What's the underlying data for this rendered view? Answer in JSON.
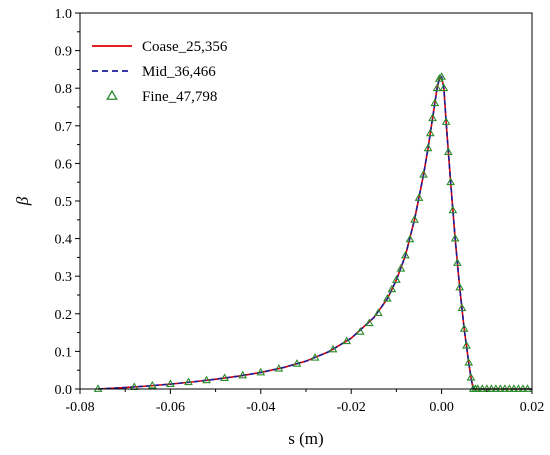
{
  "chart_data": {
    "type": "line",
    "title": "",
    "xlabel": "s (m)",
    "ylabel": "β",
    "xlim": [
      -0.08,
      0.02
    ],
    "ylim": [
      0.0,
      1.0
    ],
    "x_ticks": [
      -0.08,
      -0.06,
      -0.04,
      -0.02,
      0.0,
      0.02
    ],
    "y_ticks": [
      0.0,
      0.1,
      0.2,
      0.3,
      0.4,
      0.5,
      0.6,
      0.7,
      0.8,
      0.9,
      1.0
    ],
    "x_tick_labels": [
      "-0.08",
      "-0.06",
      "-0.04",
      "-0.02",
      "0.00",
      "0.02"
    ],
    "y_tick_labels": [
      "0.0",
      "0.1",
      "0.2",
      "0.3",
      "0.4",
      "0.5",
      "0.6",
      "0.7",
      "0.8",
      "0.9",
      "1.0"
    ],
    "grid": false,
    "legend_position": "top-left",
    "series": [
      {
        "name": "Coase_25,356",
        "style": "solid-line",
        "color": "#e00000",
        "points": [
          [
            -0.076,
            0.0
          ],
          [
            -0.07,
            0.004
          ],
          [
            -0.065,
            0.008
          ],
          [
            -0.06,
            0.013
          ],
          [
            -0.055,
            0.019
          ],
          [
            -0.05,
            0.026
          ],
          [
            -0.045,
            0.034
          ],
          [
            -0.04,
            0.044
          ],
          [
            -0.035,
            0.057
          ],
          [
            -0.03,
            0.074
          ],
          [
            -0.025,
            0.099
          ],
          [
            -0.02,
            0.135
          ],
          [
            -0.015,
            0.19
          ],
          [
            -0.012,
            0.24
          ],
          [
            -0.01,
            0.29
          ],
          [
            -0.008,
            0.355
          ],
          [
            -0.006,
            0.45
          ],
          [
            -0.004,
            0.57
          ],
          [
            -0.003,
            0.64
          ],
          [
            -0.002,
            0.72
          ],
          [
            -0.0015,
            0.76
          ],
          [
            -0.001,
            0.8
          ],
          [
            -0.0005,
            0.825
          ],
          [
            0.0,
            0.83
          ],
          [
            0.0005,
            0.8
          ],
          [
            0.001,
            0.71
          ],
          [
            0.002,
            0.55
          ],
          [
            0.003,
            0.4
          ],
          [
            0.004,
            0.27
          ],
          [
            0.005,
            0.16
          ],
          [
            0.006,
            0.07
          ],
          [
            0.0065,
            0.03
          ],
          [
            0.007,
            0.0
          ],
          [
            0.02,
            0.0
          ]
        ]
      },
      {
        "name": "Mid_36,466",
        "style": "dashed-line",
        "color": "#1c1c9a",
        "points": [
          [
            -0.076,
            0.0
          ],
          [
            -0.07,
            0.004
          ],
          [
            -0.065,
            0.008
          ],
          [
            -0.06,
            0.013
          ],
          [
            -0.055,
            0.019
          ],
          [
            -0.05,
            0.026
          ],
          [
            -0.045,
            0.034
          ],
          [
            -0.04,
            0.044
          ],
          [
            -0.035,
            0.057
          ],
          [
            -0.03,
            0.074
          ],
          [
            -0.025,
            0.099
          ],
          [
            -0.02,
            0.135
          ],
          [
            -0.015,
            0.19
          ],
          [
            -0.012,
            0.24
          ],
          [
            -0.01,
            0.29
          ],
          [
            -0.008,
            0.355
          ],
          [
            -0.006,
            0.45
          ],
          [
            -0.004,
            0.57
          ],
          [
            -0.003,
            0.64
          ],
          [
            -0.002,
            0.72
          ],
          [
            -0.0015,
            0.76
          ],
          [
            -0.001,
            0.8
          ],
          [
            -0.0005,
            0.825
          ],
          [
            0.0,
            0.83
          ],
          [
            0.0005,
            0.8
          ],
          [
            0.001,
            0.71
          ],
          [
            0.002,
            0.55
          ],
          [
            0.003,
            0.4
          ],
          [
            0.004,
            0.27
          ],
          [
            0.005,
            0.16
          ],
          [
            0.006,
            0.07
          ],
          [
            0.0065,
            0.03
          ],
          [
            0.007,
            0.0
          ],
          [
            0.02,
            0.0
          ]
        ]
      },
      {
        "name": "Fine_47,798",
        "style": "open-triangle-markers",
        "color": "#2a8a2a",
        "points": [
          [
            -0.076,
            0.0
          ],
          [
            -0.068,
            0.005
          ],
          [
            -0.064,
            0.009
          ],
          [
            -0.06,
            0.013
          ],
          [
            -0.056,
            0.018
          ],
          [
            -0.052,
            0.023
          ],
          [
            -0.048,
            0.029
          ],
          [
            -0.044,
            0.036
          ],
          [
            -0.04,
            0.044
          ],
          [
            -0.036,
            0.054
          ],
          [
            -0.032,
            0.067
          ],
          [
            -0.028,
            0.083
          ],
          [
            -0.024,
            0.105
          ],
          [
            -0.021,
            0.127
          ],
          [
            -0.018,
            0.152
          ],
          [
            -0.016,
            0.175
          ],
          [
            -0.014,
            0.202
          ],
          [
            -0.012,
            0.24
          ],
          [
            -0.011,
            0.265
          ],
          [
            -0.01,
            0.29
          ],
          [
            -0.009,
            0.32
          ],
          [
            -0.008,
            0.355
          ],
          [
            -0.007,
            0.398
          ],
          [
            -0.006,
            0.45
          ],
          [
            -0.005,
            0.508
          ],
          [
            -0.004,
            0.57
          ],
          [
            -0.003,
            0.64
          ],
          [
            -0.0025,
            0.68
          ],
          [
            -0.002,
            0.72
          ],
          [
            -0.0015,
            0.76
          ],
          [
            -0.001,
            0.8
          ],
          [
            -0.0005,
            0.825
          ],
          [
            0.0,
            0.83
          ],
          [
            0.0005,
            0.8
          ],
          [
            0.001,
            0.71
          ],
          [
            0.0015,
            0.63
          ],
          [
            0.002,
            0.55
          ],
          [
            0.0025,
            0.475
          ],
          [
            0.003,
            0.4
          ],
          [
            0.0035,
            0.335
          ],
          [
            0.004,
            0.27
          ],
          [
            0.0045,
            0.215
          ],
          [
            0.005,
            0.16
          ],
          [
            0.0055,
            0.115
          ],
          [
            0.006,
            0.07
          ],
          [
            0.0065,
            0.03
          ],
          [
            0.007,
            0.0
          ],
          [
            0.0075,
            0.0
          ],
          [
            0.008,
            0.0
          ],
          [
            0.009,
            0.0
          ],
          [
            0.01,
            0.0
          ],
          [
            0.011,
            0.0
          ],
          [
            0.012,
            0.0
          ],
          [
            0.013,
            0.0
          ],
          [
            0.014,
            0.0
          ],
          [
            0.015,
            0.0
          ],
          [
            0.016,
            0.0
          ],
          [
            0.017,
            0.0
          ],
          [
            0.018,
            0.0
          ],
          [
            0.019,
            0.0
          ]
        ]
      }
    ]
  }
}
